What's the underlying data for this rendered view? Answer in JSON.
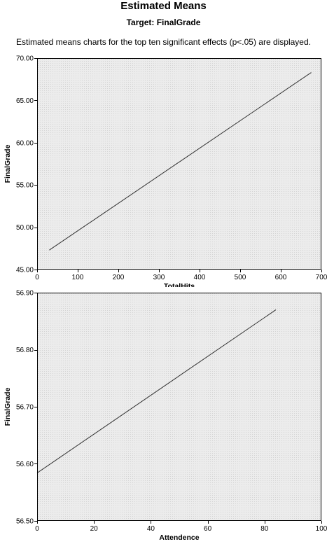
{
  "header": {
    "title": "Estimated Means",
    "subtitle": "Target: FinalGrade",
    "note": "Estimated means charts for the top ten significant effects (p<.05) are displayed."
  },
  "colors": {
    "plot_background": "#ececec",
    "line": "#333333",
    "frame": "#000000"
  },
  "chart_data": [
    {
      "type": "line",
      "title": "",
      "xlabel": "TotalHits",
      "ylabel": "FinalGrade",
      "xlim": [
        0,
        700
      ],
      "ylim": [
        45,
        70
      ],
      "xticks": [
        0,
        100,
        200,
        300,
        400,
        500,
        600,
        700
      ],
      "xtick_labels": [
        "0",
        "100",
        "200",
        "300",
        "400",
        "500",
        "600",
        "700"
      ],
      "yticks": [
        45,
        50,
        55,
        60,
        65,
        70
      ],
      "ytick_labels": [
        "45.00",
        "50.00",
        "55.00",
        "60.00",
        "65.00",
        "70.00"
      ],
      "grid": false,
      "series": [
        {
          "x": [
            30,
            675
          ],
          "y": [
            47.3,
            68.3
          ]
        }
      ]
    },
    {
      "type": "line",
      "title": "",
      "xlabel": "Attendence",
      "ylabel": "FinalGrade",
      "xlim": [
        0,
        100
      ],
      "ylim": [
        56.5,
        56.9
      ],
      "xticks": [
        0,
        20,
        40,
        60,
        80,
        100
      ],
      "xtick_labels": [
        "0",
        "20",
        "40",
        "60",
        "80",
        "100"
      ],
      "yticks": [
        56.5,
        56.6,
        56.7,
        56.8,
        56.9
      ],
      "ytick_labels": [
        "56.50",
        "56.60",
        "56.70",
        "56.80",
        "56.90"
      ],
      "grid": false,
      "series": [
        {
          "x": [
            0,
            84
          ],
          "y": [
            56.584,
            56.87
          ]
        }
      ]
    }
  ]
}
